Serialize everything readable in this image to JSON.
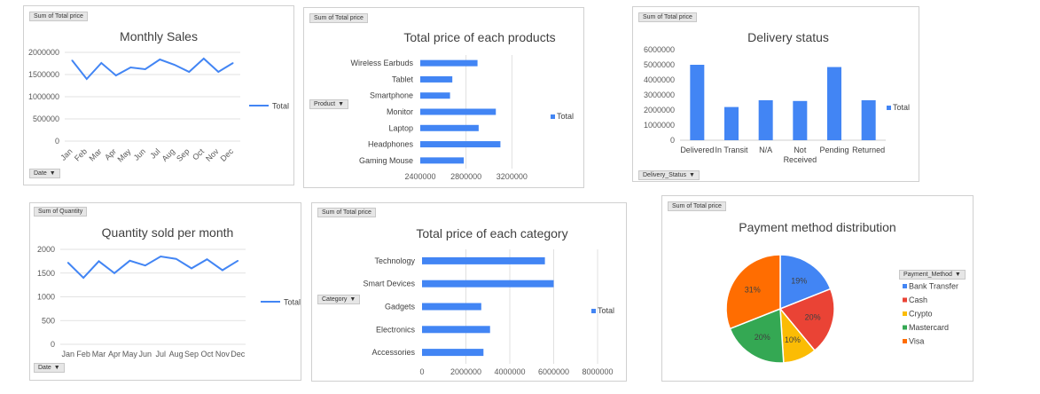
{
  "colors": {
    "series": "#4285F4",
    "grid": "#d9d9d9",
    "axis": "#bfbfbf",
    "pie": [
      "#4285F4",
      "#EA4335",
      "#FBBC04",
      "#34A853",
      "#FF6D01"
    ]
  },
  "charts": {
    "monthly_sales": {
      "field_chip": "Sum of Total price",
      "filter_chip": "Date"
    },
    "total_by_product": {
      "field_chip": "Sum of Total price",
      "filter_chip": "Product"
    },
    "delivery_status": {
      "field_chip": "Sum of Total price",
      "filter_chip": "Delivery_Status"
    },
    "quantity_per_month": {
      "field_chip": "Sum of Quantity",
      "filter_chip": "Date"
    },
    "total_by_category": {
      "field_chip": "Sum of Total price",
      "filter_chip": "Category"
    },
    "payment_method": {
      "field_chip": "Sum of Total price",
      "filter_chip": "Payment_Method"
    }
  },
  "chart_data": [
    {
      "id": "monthly_sales",
      "type": "line",
      "title": "Monthly Sales",
      "categories": [
        "Jan",
        "Feb",
        "Mar",
        "Apr",
        "May",
        "Jun",
        "Jul",
        "Aug",
        "Sep",
        "Oct",
        "Nov",
        "Dec"
      ],
      "series": [
        {
          "name": "Total",
          "values": [
            1820000,
            1400000,
            1760000,
            1480000,
            1660000,
            1620000,
            1840000,
            1720000,
            1560000,
            1860000,
            1560000,
            1760000
          ]
        }
      ],
      "ylim": [
        0,
        2000000
      ],
      "yticks": [
        "0",
        "500000",
        "1000000",
        "1500000",
        "2000000"
      ],
      "grid": true,
      "legend": "right"
    },
    {
      "id": "total_by_product",
      "type": "bar",
      "orientation": "horizontal",
      "title": "Total price of each products",
      "categories": [
        "Wireless Earbuds",
        "Tablet",
        "Smartphone",
        "Monitor",
        "Laptop",
        "Headphones",
        "Gaming Mouse"
      ],
      "series": [
        {
          "name": "Total",
          "values": [
            2900000,
            2680000,
            2660000,
            3060000,
            2910000,
            3100000,
            2780000
          ]
        }
      ],
      "xlim": [
        2400000,
        3600000
      ],
      "xticks": [
        "2400000",
        "2800000",
        "3200000"
      ],
      "grid": true,
      "legend": "right"
    },
    {
      "id": "delivery_status",
      "type": "bar",
      "title": "Delivery status",
      "categories": [
        "Delivered",
        "In Transit",
        "N/A",
        "Not Received",
        "Pending",
        "Returned"
      ],
      "series": [
        {
          "name": "Total",
          "values": [
            5000000,
            2200000,
            2650000,
            2600000,
            4850000,
            2650000
          ]
        }
      ],
      "ylim": [
        0,
        6000000
      ],
      "yticks": [
        "0",
        "1000000",
        "2000000",
        "3000000",
        "4000000",
        "5000000",
        "6000000"
      ],
      "grid": false,
      "legend": "right"
    },
    {
      "id": "quantity_per_month",
      "type": "line",
      "title": "Quantity sold per month",
      "categories": [
        "Jan",
        "Feb",
        "Mar",
        "Apr",
        "May",
        "Jun",
        "Jul",
        "Aug",
        "Sep",
        "Oct",
        "Nov",
        "Dec"
      ],
      "series": [
        {
          "name": "Total",
          "values": [
            1720,
            1400,
            1750,
            1500,
            1760,
            1660,
            1850,
            1800,
            1600,
            1790,
            1560,
            1760
          ]
        }
      ],
      "ylim": [
        0,
        2000
      ],
      "yticks": [
        "0",
        "500",
        "1000",
        "1500",
        "2000"
      ],
      "grid": true,
      "legend": "right"
    },
    {
      "id": "total_by_category",
      "type": "bar",
      "orientation": "horizontal",
      "title": "Total price of each category",
      "categories": [
        "Technology",
        "Smart Devices",
        "Gadgets",
        "Electronics",
        "Accessories"
      ],
      "series": [
        {
          "name": "Total",
          "values": [
            5600000,
            6000000,
            2700000,
            3100000,
            2800000
          ]
        }
      ],
      "xlim": [
        0,
        8000000
      ],
      "xticks": [
        "0",
        "2000000",
        "4000000",
        "6000000",
        "8000000"
      ],
      "grid": true,
      "legend": "right"
    },
    {
      "id": "payment_method",
      "type": "pie",
      "title": "Payment method distribution",
      "categories": [
        "Bank Transfer",
        "Cash",
        "Crypto",
        "Mastercard",
        "Visa"
      ],
      "values": [
        19,
        20,
        10,
        20,
        31
      ],
      "labels": [
        "19%",
        "20%",
        "10%",
        "20%",
        "31%"
      ],
      "legend": "right"
    }
  ]
}
